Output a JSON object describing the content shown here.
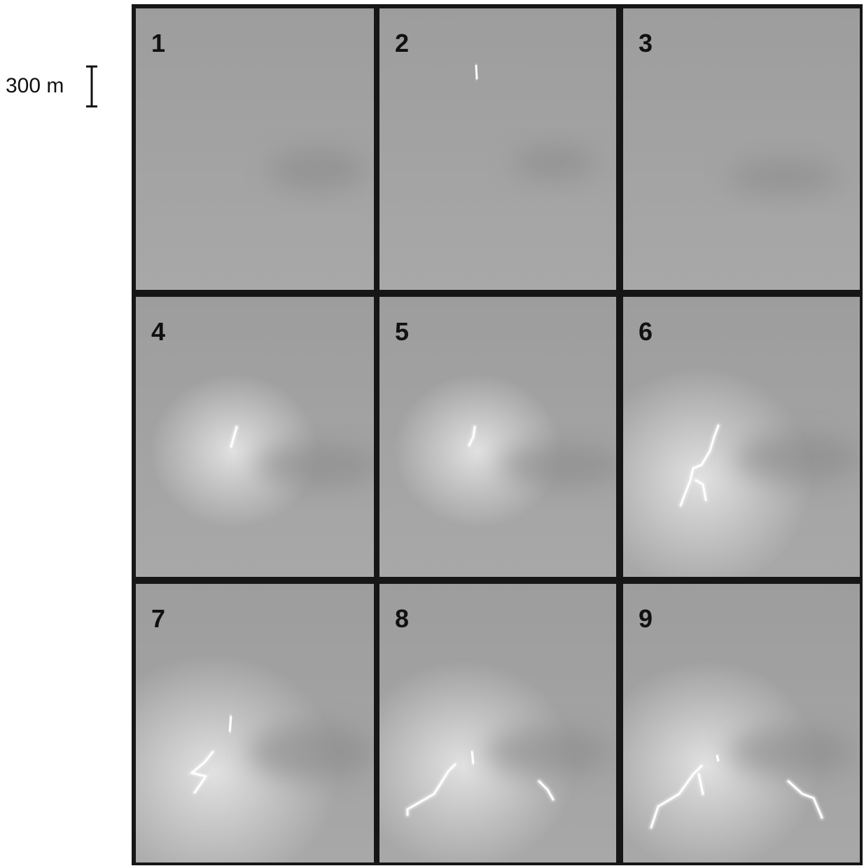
{
  "scale_bar": {
    "label": "300 m"
  },
  "panels": [
    {
      "label": "1"
    },
    {
      "label": "2"
    },
    {
      "label": "3"
    },
    {
      "label": "4"
    },
    {
      "label": "5"
    },
    {
      "label": "6"
    },
    {
      "label": "7"
    },
    {
      "label": "8"
    },
    {
      "label": "9"
    }
  ]
}
